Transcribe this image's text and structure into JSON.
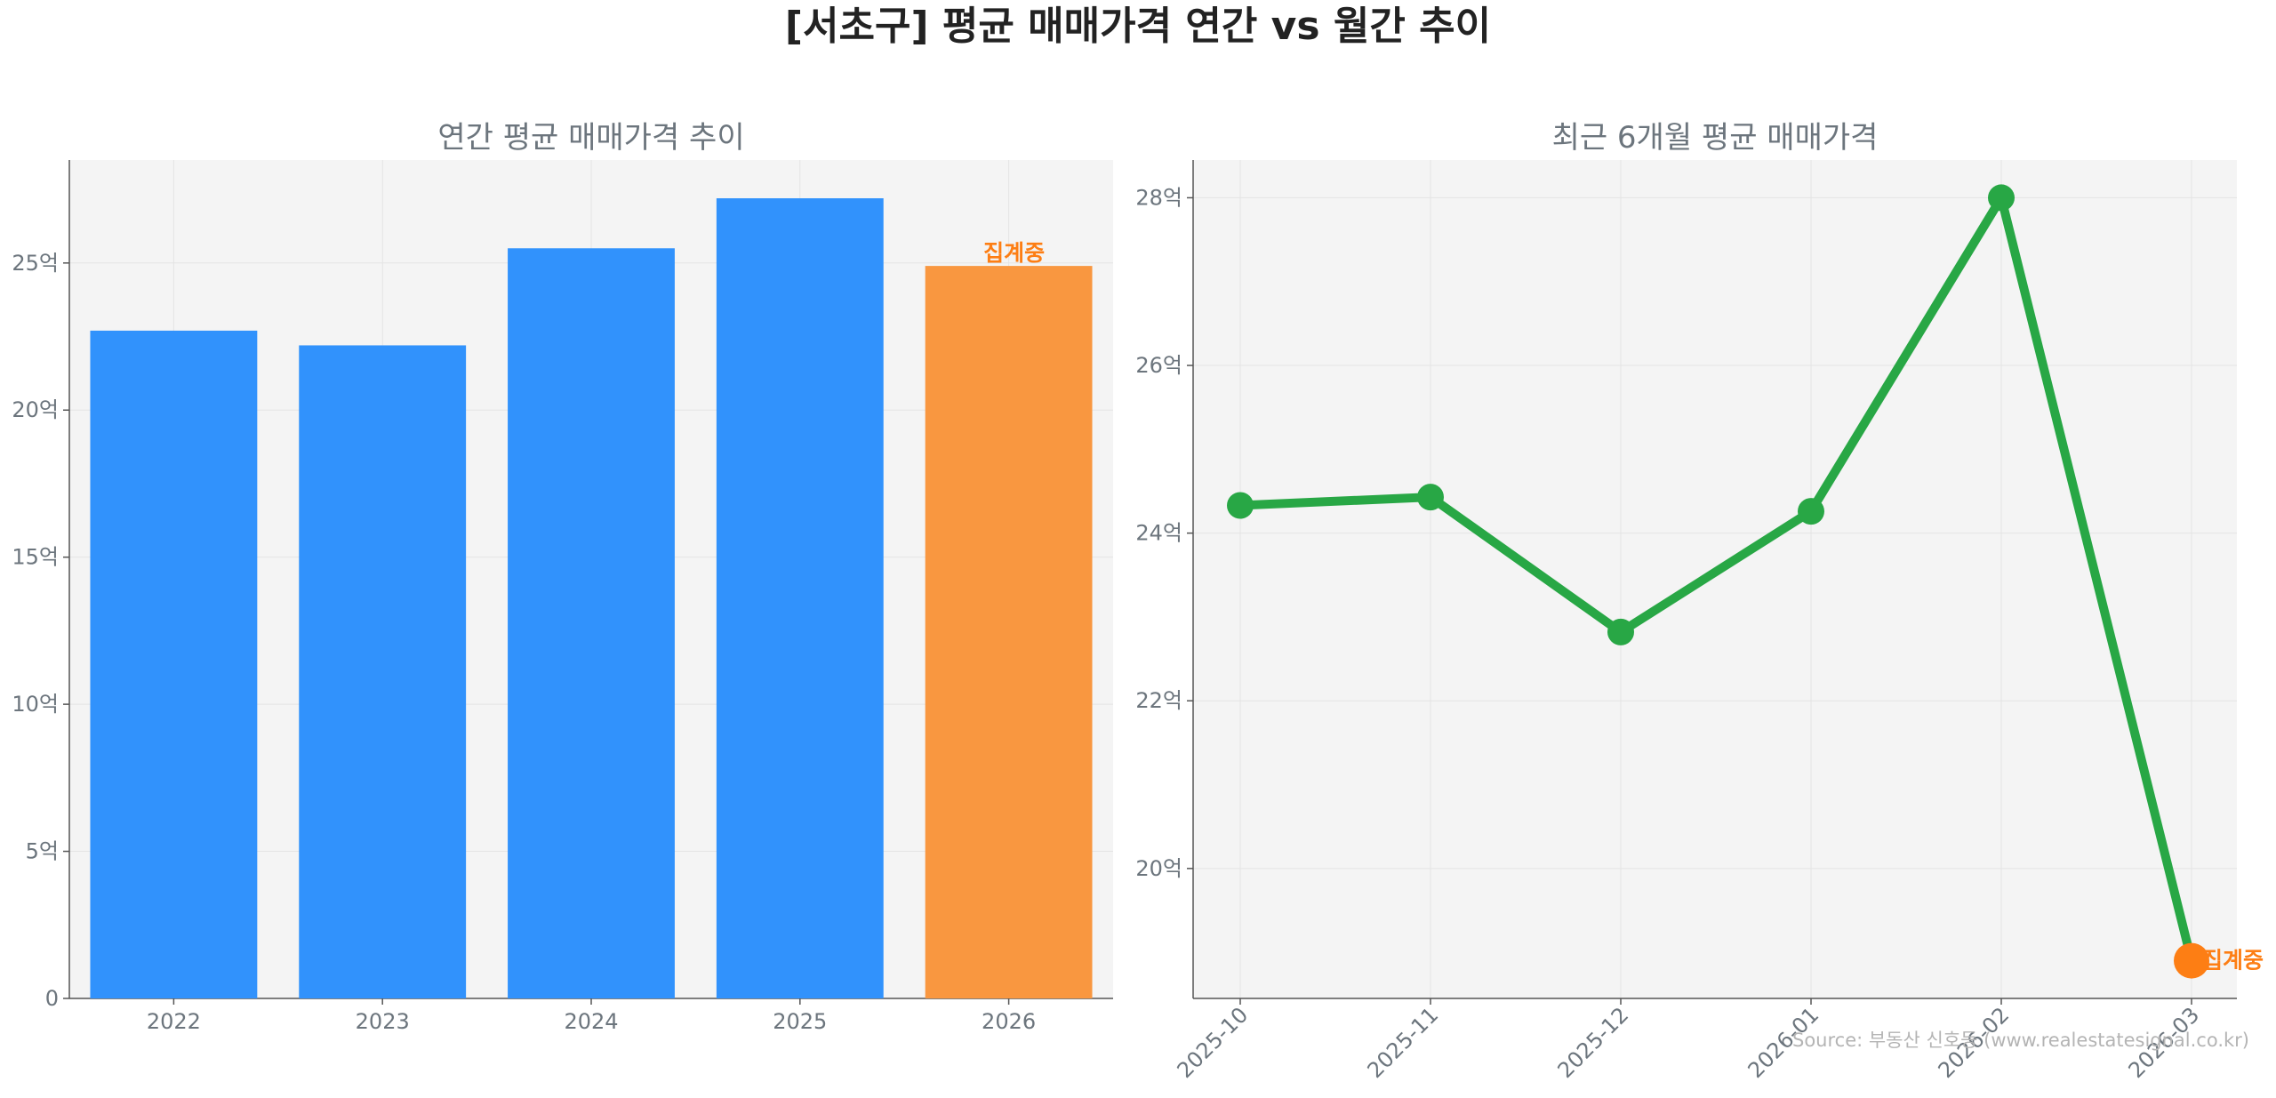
{
  "figure": {
    "title": "[서초구] 평균 매매가격 연간 vs 월간 추이",
    "source": "Source: 부동산 신호등 (www.realestatesignal.co.kr)"
  },
  "colors": {
    "bar": "#3192fc",
    "bar_pending": "#f99740",
    "line": "#28a745",
    "marker_pending": "#fd7e14",
    "pending_label": "#fd7e14",
    "panel_bg": "#f4f4f4",
    "grid": "#e4e4e4",
    "axis_text": "#6c757d",
    "subtitle": "#6c757d"
  },
  "chart_data": [
    {
      "type": "bar",
      "title": "연간 평균 매매가격 추이",
      "categories": [
        "2022",
        "2023",
        "2024",
        "2025",
        "2026"
      ],
      "values": [
        22.7,
        22.2,
        25.5,
        27.2,
        24.9
      ],
      "pending_index": 4,
      "pending_label": "집계중",
      "ylim": [
        0,
        28.5
      ],
      "yticks": [
        0,
        5,
        10,
        15,
        20,
        25
      ],
      "ytick_labels": [
        "0",
        "5억",
        "10억",
        "15억",
        "20억",
        "25억"
      ],
      "grid": true
    },
    {
      "type": "line",
      "title": "최근 6개월 평균 매매가격",
      "categories": [
        "2025-10",
        "2025-11",
        "2025-12",
        "2026-01",
        "2026-02",
        "2026-03"
      ],
      "values": [
        24.33,
        24.43,
        22.82,
        24.26,
        28.0,
        18.9
      ],
      "pending_index": 5,
      "pending_label": "집계중",
      "ylim": [
        18.45,
        28.45
      ],
      "yticks": [
        20,
        22,
        24,
        26,
        28
      ],
      "ytick_labels": [
        "20억",
        "22억",
        "24억",
        "26억",
        "28억"
      ],
      "grid": true
    }
  ]
}
